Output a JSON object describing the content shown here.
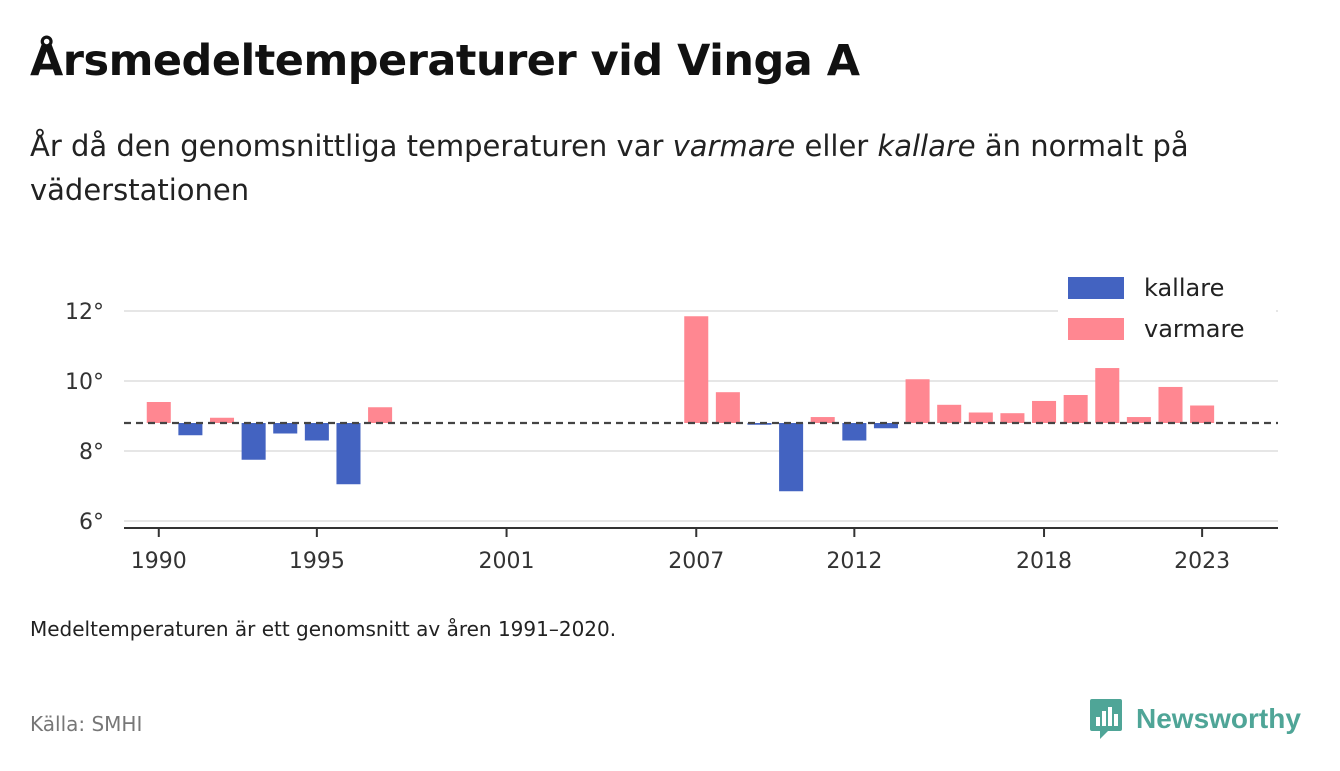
{
  "header": {
    "title": "Årsmedeltemperaturer vid Vinga A",
    "subtitle_parts": [
      "År då den genomsnittliga temperaturen var ",
      "varmare",
      " eller ",
      "kallare",
      " än normalt på väderstationen"
    ]
  },
  "footer": {
    "note": "Medeltemperaturen är ett genomsnitt av åren 1991–2020.",
    "source": "Källa: SMHI",
    "brand": "Newsworthy"
  },
  "colors": {
    "kallare": "#4363c1",
    "varmare": "#ff8791",
    "brand": "#4fa597"
  },
  "icons": {
    "brand_logo": "chat-bar-chart-icon"
  },
  "chart_data": {
    "type": "bar",
    "baseline": 8.8,
    "baseline_style": "dashed",
    "ylim": [
      5.8,
      12.6
    ],
    "yticks": [
      6,
      8,
      10,
      12
    ],
    "ytick_labels": [
      "6°",
      "8°",
      "10°",
      "12°"
    ],
    "xlim": [
      1988.9,
      2025.4
    ],
    "xticks": [
      1990,
      1995,
      2001,
      2007,
      2012,
      2018,
      2023
    ],
    "xtick_labels": [
      "1990",
      "1995",
      "2001",
      "2007",
      "2012",
      "2018",
      "2023"
    ],
    "grid": true,
    "legend_position": "top-right",
    "series": [
      {
        "name": "kallare",
        "color": "#4363c1"
      },
      {
        "name": "varmare",
        "color": "#ff8791"
      }
    ],
    "points": [
      {
        "x": 1990,
        "y": 9.4
      },
      {
        "x": 1991,
        "y": 8.45
      },
      {
        "x": 1992,
        "y": 8.95
      },
      {
        "x": 1993,
        "y": 7.75
      },
      {
        "x": 1994,
        "y": 8.5
      },
      {
        "x": 1995,
        "y": 8.3
      },
      {
        "x": 1996,
        "y": 7.05
      },
      {
        "x": 1997,
        "y": 9.25
      },
      {
        "x": 2007,
        "y": 11.85
      },
      {
        "x": 2008,
        "y": 9.68
      },
      {
        "x": 2009,
        "y": 8.75
      },
      {
        "x": 2010,
        "y": 6.85
      },
      {
        "x": 2011,
        "y": 8.97
      },
      {
        "x": 2012,
        "y": 8.3
      },
      {
        "x": 2013,
        "y": 8.65
      },
      {
        "x": 2014,
        "y": 10.05
      },
      {
        "x": 2015,
        "y": 9.32
      },
      {
        "x": 2016,
        "y": 9.1
      },
      {
        "x": 2017,
        "y": 9.08
      },
      {
        "x": 2018,
        "y": 9.43
      },
      {
        "x": 2019,
        "y": 9.6
      },
      {
        "x": 2020,
        "y": 10.37
      },
      {
        "x": 2021,
        "y": 8.97
      },
      {
        "x": 2022,
        "y": 9.83
      },
      {
        "x": 2023,
        "y": 9.3
      }
    ]
  }
}
